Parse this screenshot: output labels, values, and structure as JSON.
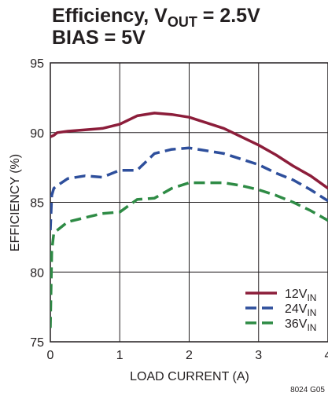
{
  "chart_data": {
    "type": "line",
    "title": {
      "line1_prefix": "Efficiency, V",
      "line1_sub": "OUT",
      "line1_suffix": " = 2.5V",
      "line2": "BIAS = 5V"
    },
    "xlabel": "LOAD CURRENT (A)",
    "ylabel": "EFFICIENCY (%)",
    "xlim": [
      0,
      4
    ],
    "ylim": [
      75,
      95
    ],
    "x_ticks": [
      "0",
      "1",
      "2",
      "3",
      "4"
    ],
    "y_ticks": [
      "75",
      "80",
      "85",
      "90",
      "95"
    ],
    "grid": true,
    "legend_position": "bottom-right",
    "figure_id": "8024 G05",
    "series": [
      {
        "name_main": "12V",
        "name_sub": "IN",
        "color": "#8c1d3a",
        "style": "solid",
        "x": [
          0,
          0.05,
          0.1,
          0.25,
          0.5,
          0.75,
          1.0,
          1.25,
          1.5,
          1.75,
          2.0,
          2.25,
          2.5,
          2.75,
          3.0,
          3.25,
          3.5,
          3.75,
          4.0
        ],
        "y": [
          89.7,
          89.8,
          90.0,
          90.1,
          90.2,
          90.3,
          90.6,
          91.2,
          91.4,
          91.3,
          91.1,
          90.7,
          90.3,
          89.7,
          89.1,
          88.4,
          87.6,
          86.9,
          86.0
        ]
      },
      {
        "name_main": "24V",
        "name_sub": "IN",
        "color": "#2e4f9c",
        "style": "dashed",
        "x": [
          0,
          0.02,
          0.05,
          0.1,
          0.25,
          0.5,
          0.75,
          1.0,
          1.25,
          1.5,
          1.75,
          2.0,
          2.25,
          2.5,
          2.75,
          3.0,
          3.25,
          3.5,
          3.75,
          4.0
        ],
        "y": [
          83.0,
          85.5,
          86.0,
          86.2,
          86.7,
          86.9,
          86.8,
          87.3,
          87.3,
          88.5,
          88.8,
          88.9,
          88.7,
          88.5,
          88.1,
          87.7,
          87.1,
          86.6,
          85.9,
          85.1
        ]
      },
      {
        "name_main": "36V",
        "name_sub": "IN",
        "color": "#2e8b45",
        "style": "dashed",
        "x": [
          0,
          0.02,
          0.05,
          0.1,
          0.25,
          0.5,
          0.75,
          1.0,
          1.25,
          1.5,
          1.75,
          2.0,
          2.25,
          2.5,
          2.75,
          3.0,
          3.25,
          3.5,
          3.75,
          4.0
        ],
        "y": [
          76.0,
          81.5,
          82.8,
          83.0,
          83.6,
          83.9,
          84.2,
          84.3,
          85.2,
          85.3,
          86.0,
          86.4,
          86.4,
          86.4,
          86.2,
          85.9,
          85.5,
          85.0,
          84.4,
          83.7
        ]
      }
    ]
  }
}
